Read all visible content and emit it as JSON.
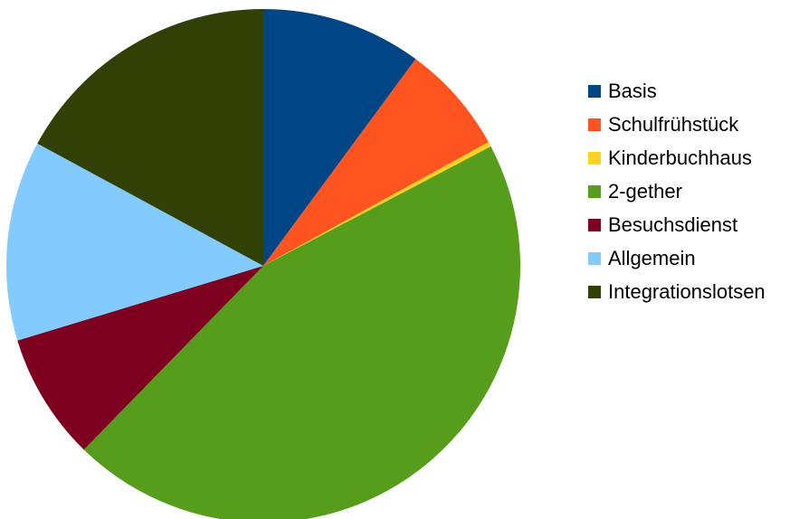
{
  "chart_data": {
    "type": "pie",
    "title": "",
    "series": [
      {
        "name": "Basis",
        "value": 10.1,
        "color": "#004586"
      },
      {
        "name": "Schulfrühstück",
        "value": 6.9,
        "color": "#ff5420"
      },
      {
        "name": "Kinderbuchhaus",
        "value": 0.3,
        "color": "#ffd320"
      },
      {
        "name": "2-gether",
        "value": 45.0,
        "color": "#579d1c"
      },
      {
        "name": "Besuchsdienst",
        "value": 8.0,
        "color": "#7e0021"
      },
      {
        "name": "Allgemein",
        "value": 12.6,
        "color": "#83caff"
      },
      {
        "name": "Integrationslotsen",
        "value": 17.1,
        "color": "#314004"
      }
    ],
    "legend_position": "right"
  }
}
